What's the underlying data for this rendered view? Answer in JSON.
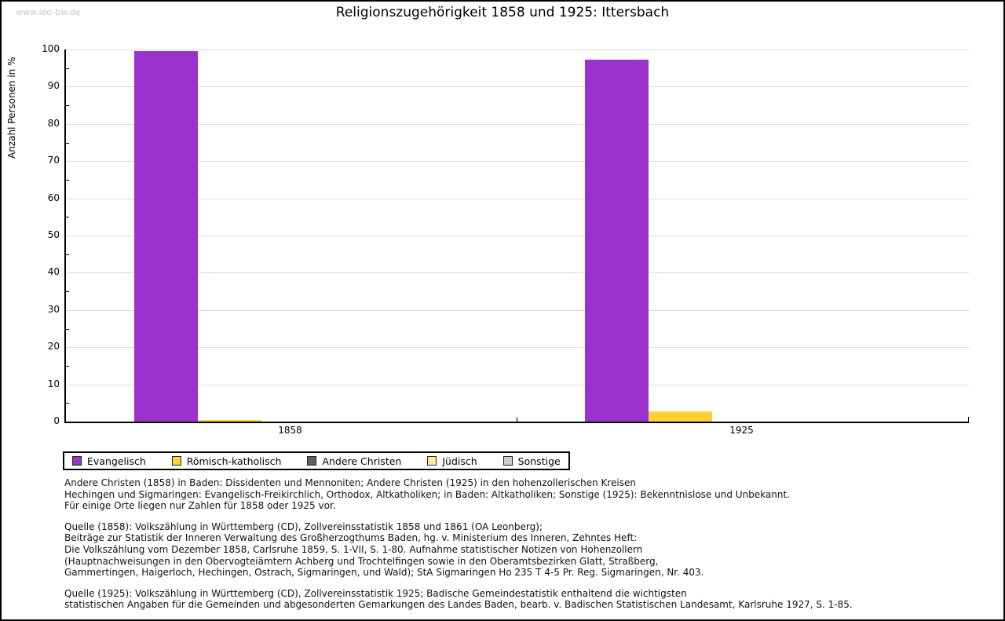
{
  "watermark": "www.leo-bw.de",
  "title": "Religionszugehörigkeit 1858 und 1925: Ittersbach",
  "chart_data": {
    "type": "bar",
    "title": "Religionszugehörigkeit 1858 und 1925: Ittersbach",
    "xlabel": "",
    "ylabel": "Anzahl Personen in %",
    "ylim": [
      0,
      100
    ],
    "ytick_step": 10,
    "y_minor_tick_step": 5,
    "grid": true,
    "legend_position": "bottom",
    "categories": [
      "1858",
      "1925"
    ],
    "series": [
      {
        "name": "Evangelisch",
        "color": "#9933CC",
        "values": [
          99.6,
          97.3
        ]
      },
      {
        "name": "Römisch-katholisch",
        "color": "#FFD333",
        "values": [
          0.4,
          2.7
        ]
      },
      {
        "name": "Andere Christen",
        "color": "#606060",
        "values": [
          0,
          0
        ]
      },
      {
        "name": "Jüdisch",
        "color": "#FFEE99",
        "values": [
          0,
          0
        ]
      },
      {
        "name": "Sonstige",
        "color": "#CCCCCC",
        "values": [
          0,
          0
        ]
      }
    ]
  },
  "footnotes": [
    {
      "lines": [
        "Andere Christen (1858) in Baden: Dissidenten und Mennoniten; Andere Christen (1925) in den hohenzollerischen Kreisen",
        "Hechingen und Sigmaringen: Evangelisch-Freikirchlich, Orthodox, Altkatholiken; in Baden: Altkatholiken; Sonstige (1925): Bekenntnislose und Unbekannt.",
        "Für einige Orte liegen nur Zahlen für 1858 oder 1925 vor."
      ]
    },
    {
      "lines": [
        "Quelle (1858): Volkszählung in Württemberg (CD), Zollvereinsstatistik 1858 und 1861 (OA Leonberg);",
        "Beiträge zur Statistik der Inneren Verwaltung des Großherzogthums Baden, hg. v. Ministerium des Inneren, Zehntes Heft:",
        "Die Volkszählung vom Dezember 1858, Carlsruhe 1859, S. 1-VII, S. 1-80. Aufnahme statistischer Notizen von Hohenzollern",
        "(Hauptnachweisungen in den Obervogteiämtern Achberg und Trochtelfingen sowie in den Oberamtsbezirken Glatt, Straßberg,",
        "Gammertingen, Haigerloch, Hechingen, Ostrach, Sigmaringen, und Wald); StA Sigmaringen Ho 235 T 4-5 Pr. Reg. Sigmaringen, Nr. 403."
      ]
    },
    {
      "lines": [
        "Quelle (1925): Volkszählung in Württemberg (CD), Zollvereinsstatistik 1925; Badische Gemeindestatistik enthaltend die wichtigsten",
        "statistischen Angaben für die Gemeinden und abgesonderten Gemarkungen des Landes Baden, bearb. v. Badischen Statistischen Landesamt, Karlsruhe 1927, S. 1-85."
      ]
    }
  ]
}
